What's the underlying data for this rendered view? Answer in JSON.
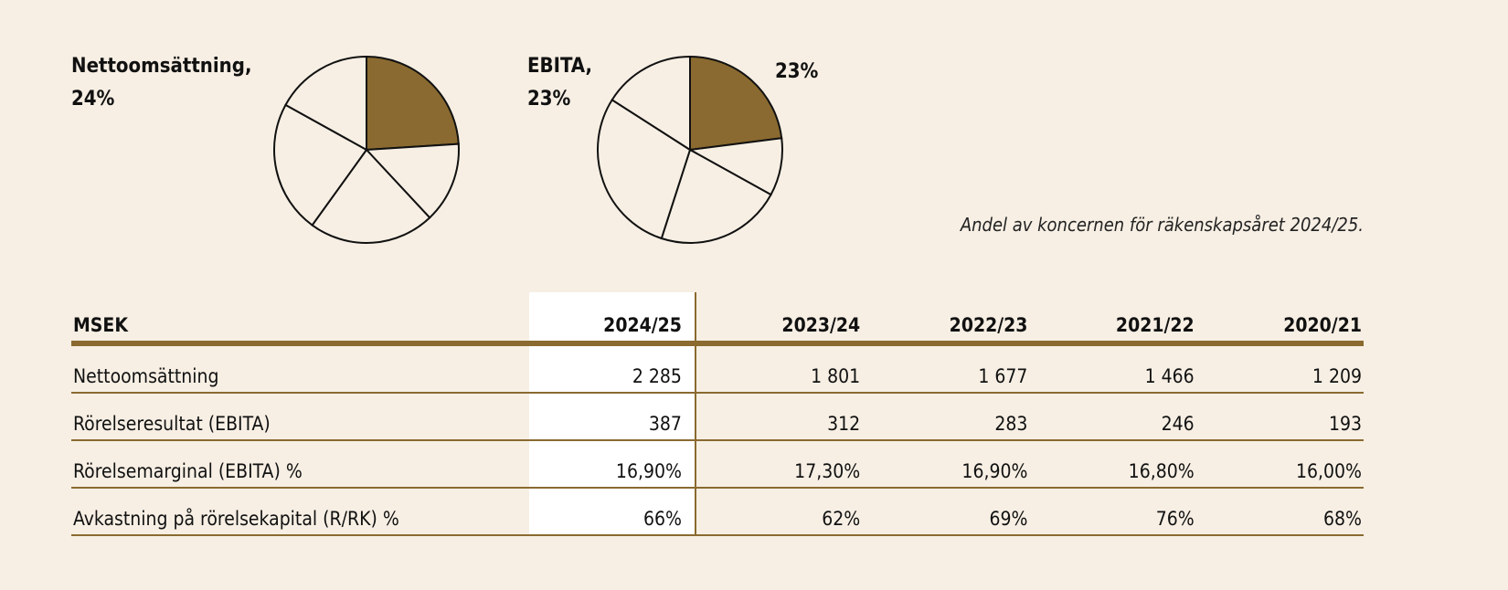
{
  "chart_data": [
    {
      "type": "pie",
      "title": "Nettoomsättning,",
      "highlight_label": "24%",
      "values": [
        24,
        14,
        22,
        23,
        17
      ],
      "highlight_index": 0,
      "colors": {
        "highlight": "#8a6a30",
        "other": "#f7efe4",
        "stroke": "#111111"
      }
    },
    {
      "type": "pie",
      "title": "EBITA,",
      "highlight_label": "23%",
      "values": [
        23,
        10,
        22,
        29,
        16
      ],
      "highlight_index": 0,
      "slice_label": "23%",
      "colors": {
        "highlight": "#8a6a30",
        "other": "#f7efe4",
        "stroke": "#111111"
      }
    }
  ],
  "caption": "Andel av koncernen för räkenskapsåret 2024/25.",
  "table": {
    "headers": [
      "MSEK",
      "2024/25",
      "2023/24",
      "2022/23",
      "2021/22",
      "2020/21"
    ],
    "rows": [
      [
        "Nettoomsättning",
        "2 285",
        "1 801",
        "1 677",
        "1 466",
        "1 209"
      ],
      [
        "Rörelseresultat (EBITA)",
        "387",
        "312",
        "283",
        "246",
        "193"
      ],
      [
        "Rörelsemarginal (EBITA) %",
        "16,90%",
        "17,30%",
        "16,90%",
        "16,80%",
        "16,00%"
      ],
      [
        "Avkastning på rörelsekapital (R/RK) %",
        "66%",
        "62%",
        "69%",
        "76%",
        "68%"
      ]
    ]
  },
  "colors": {
    "background": "#f7efe4",
    "accent": "#8a6a30"
  }
}
